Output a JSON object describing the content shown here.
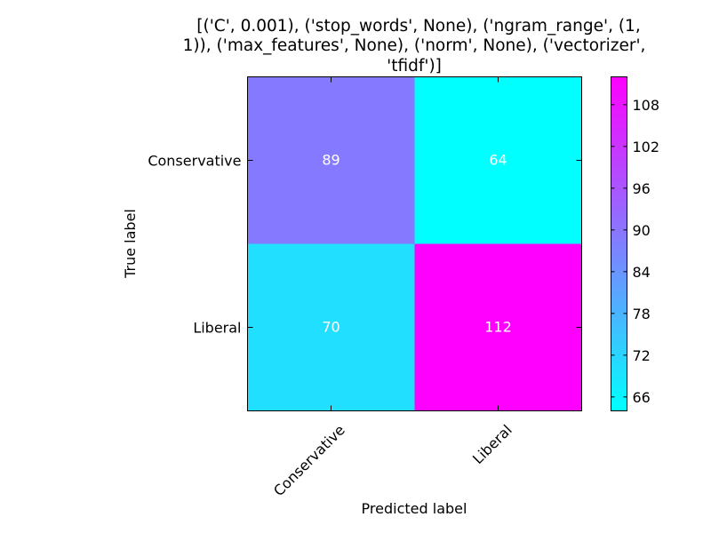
{
  "chart_data": {
    "type": "heatmap",
    "title_lines": [
      "[('C', 0.001), ('stop_words', None), ('ngram_range', (1,",
      "1)), ('max_features', None), ('norm', None), ('vectorizer',",
      "'tfidf')]"
    ],
    "xlabel": "Predicted label",
    "ylabel": "True label",
    "x_categories": [
      "Conservative",
      "Liberal"
    ],
    "y_categories": [
      "Conservative",
      "Liberal"
    ],
    "values": [
      [
        89,
        64
      ],
      [
        70,
        112
      ]
    ],
    "colormap": "cool",
    "colormap_endpoints": [
      "#00ffff",
      "#ff00ff"
    ],
    "vmin": 64,
    "vmax": 112,
    "colorbar_ticks": [
      66,
      72,
      78,
      84,
      90,
      96,
      102,
      108
    ],
    "cell_text_color": "#ffffff"
  }
}
